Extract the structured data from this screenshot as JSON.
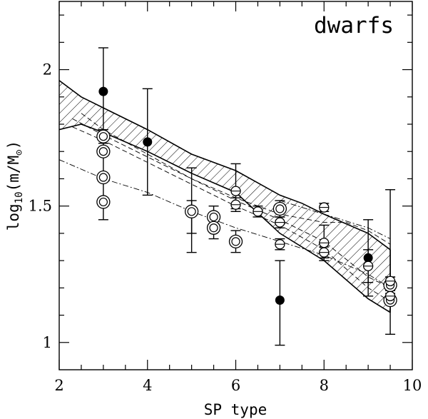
{
  "chart_data": {
    "type": "scatter",
    "annotation": "dwarfs",
    "xlabel": "SP type",
    "ylabel": "log10(m/M⊙)",
    "ylabel_parts": {
      "pre": "log",
      "sub": "10",
      "mid": "(m/M",
      "sub2": "⊙",
      "post": ")"
    },
    "xlim": [
      2,
      10
    ],
    "ylim": [
      0.9,
      2.25
    ],
    "xticks": [
      2,
      4,
      6,
      8,
      10
    ],
    "xtick_labels": [
      "2",
      "4",
      "6",
      "8",
      "10"
    ],
    "yticks": [
      1,
      1.5,
      2
    ],
    "ytick_labels": [
      "1",
      "1.5",
      "2"
    ],
    "grid": false,
    "band": {
      "upper": [
        [
          2,
          1.96
        ],
        [
          2.5,
          1.9
        ],
        [
          3,
          1.86
        ],
        [
          4,
          1.78
        ],
        [
          5,
          1.69
        ],
        [
          6,
          1.63
        ],
        [
          7,
          1.54
        ],
        [
          7.5,
          1.51
        ],
        [
          8,
          1.47
        ],
        [
          9,
          1.4
        ],
        [
          9.5,
          1.34
        ]
      ],
      "lower": [
        [
          2,
          1.78
        ],
        [
          2.5,
          1.8
        ],
        [
          3,
          1.77
        ],
        [
          4,
          1.7
        ],
        [
          5,
          1.62
        ],
        [
          6,
          1.55
        ],
        [
          7,
          1.4
        ],
        [
          8,
          1.3
        ],
        [
          9,
          1.16
        ],
        [
          9.5,
          1.11
        ]
      ]
    },
    "model_curves": [
      {
        "style": "dashed",
        "points": [
          [
            2.3,
            1.82
          ],
          [
            3,
            1.76
          ],
          [
            4,
            1.68
          ],
          [
            5,
            1.6
          ],
          [
            6,
            1.52
          ],
          [
            7,
            1.45
          ],
          [
            8,
            1.37
          ],
          [
            9,
            1.24
          ],
          [
            9.5,
            1.2
          ]
        ]
      },
      {
        "style": "dashed",
        "points": [
          [
            2.3,
            1.79
          ],
          [
            3,
            1.74
          ],
          [
            4,
            1.66
          ],
          [
            5,
            1.58
          ],
          [
            6,
            1.5
          ],
          [
            7,
            1.43
          ],
          [
            8,
            1.34
          ],
          [
            9,
            1.2
          ],
          [
            9.5,
            1.15
          ]
        ]
      },
      {
        "style": "dashed",
        "points": [
          [
            2.5,
            1.84
          ],
          [
            3,
            1.78
          ],
          [
            4,
            1.69
          ],
          [
            5,
            1.6
          ],
          [
            6,
            1.53
          ],
          [
            7,
            1.47
          ],
          [
            8,
            1.44
          ],
          [
            8.5,
            1.44
          ],
          [
            9,
            1.41
          ],
          [
            9.5,
            1.36
          ]
        ]
      },
      {
        "style": "dash-dot",
        "points": [
          [
            2,
            1.67
          ],
          [
            3,
            1.6
          ],
          [
            4,
            1.55
          ],
          [
            5,
            1.48
          ],
          [
            6,
            1.42
          ],
          [
            7,
            1.37
          ],
          [
            8,
            1.32
          ],
          [
            9,
            1.25
          ],
          [
            9.5,
            1.2
          ]
        ]
      },
      {
        "style": "dash-dot",
        "points": [
          [
            7,
            1.52
          ],
          [
            8,
            1.47
          ],
          [
            9,
            1.42
          ],
          [
            9.5,
            1.38
          ]
        ]
      }
    ],
    "series": [
      {
        "marker": "filled",
        "points": [
          {
            "x": 3,
            "y": 1.92,
            "ylo": 1.75,
            "yhi": 2.08
          },
          {
            "x": 3,
            "y": 1.61,
            "ylo": 1.45,
            "yhi": 1.76
          },
          {
            "x": 4,
            "y": 1.735,
            "ylo": 1.54,
            "yhi": 1.93
          },
          {
            "x": 5,
            "y": 1.485,
            "ylo": 1.33,
            "yhi": 1.64
          },
          {
            "x": 7,
            "y": 1.155,
            "ylo": 0.99,
            "yhi": 1.3
          },
          {
            "x": 9,
            "y": 1.31,
            "ylo": 1.17,
            "yhi": 1.45
          }
        ]
      },
      {
        "marker": "open-double",
        "points": [
          {
            "x": 3,
            "y": 1.755,
            "ylo": 1.73,
            "yhi": 1.78
          },
          {
            "x": 3,
            "y": 1.7,
            "ylo": 1.69,
            "yhi": 1.71
          },
          {
            "x": 3,
            "y": 1.605,
            "ylo": 1.59,
            "yhi": 1.62
          },
          {
            "x": 3,
            "y": 1.515,
            "ylo": 1.5,
            "yhi": 1.53
          },
          {
            "x": 5,
            "y": 1.48,
            "ylo": 1.4,
            "yhi": 1.52
          },
          {
            "x": 5.5,
            "y": 1.46,
            "ylo": 1.42,
            "yhi": 1.5
          },
          {
            "x": 5.5,
            "y": 1.42,
            "ylo": 1.38,
            "yhi": 1.46
          },
          {
            "x": 6,
            "y": 1.37,
            "ylo": 1.33,
            "yhi": 1.41
          },
          {
            "x": 7,
            "y": 1.49,
            "ylo": 1.46,
            "yhi": 1.52
          },
          {
            "x": 9.5,
            "y": 1.21,
            "ylo": 1.18,
            "yhi": 1.24
          },
          {
            "x": 9.5,
            "y": 1.155,
            "ylo": 1.03,
            "yhi": 1.56
          }
        ]
      },
      {
        "marker": "open",
        "points": [
          {
            "x": 6,
            "y": 1.555,
            "ylo": 1.49,
            "yhi": 1.655
          },
          {
            "x": 6,
            "y": 1.505,
            "ylo": 1.48,
            "yhi": 1.53
          },
          {
            "x": 6.5,
            "y": 1.48,
            "ylo": 1.46,
            "yhi": 1.5
          },
          {
            "x": 7,
            "y": 1.44,
            "ylo": 1.42,
            "yhi": 1.46
          },
          {
            "x": 7,
            "y": 1.36,
            "ylo": 1.34,
            "yhi": 1.38
          },
          {
            "x": 8,
            "y": 1.495,
            "ylo": 1.48,
            "yhi": 1.51
          },
          {
            "x": 8,
            "y": 1.365,
            "ylo": 1.3,
            "yhi": 1.43
          },
          {
            "x": 8,
            "y": 1.33,
            "ylo": 1.31,
            "yhi": 1.35
          },
          {
            "x": 9,
            "y": 1.28,
            "ylo": 1.22,
            "yhi": 1.34
          },
          {
            "x": 9.5,
            "y": 1.225,
            "ylo": 1.21,
            "yhi": 1.24
          },
          {
            "x": 9.5,
            "y": 1.17,
            "ylo": 1.15,
            "yhi": 1.19
          }
        ]
      }
    ]
  }
}
